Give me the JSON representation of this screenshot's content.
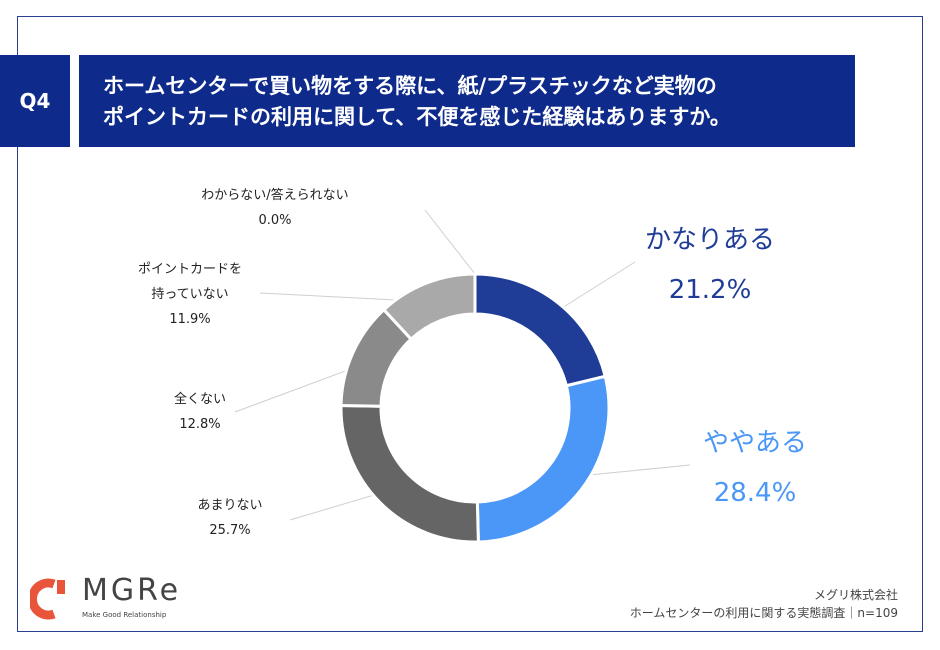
{
  "header": {
    "q_number": "Q4",
    "title_line1": "ホームセンターで買い物をする際に、紙/プラスチックなど実物の",
    "title_line2": "ポイントカードの利用に関して、不便を感じた経験はありますか。"
  },
  "chart_data": {
    "type": "pie",
    "donut": true,
    "categories": [
      "かなりある",
      "ややある",
      "あまりない",
      "全くない",
      "ポイントカードを持っていない",
      "わからない/答えられない"
    ],
    "values": [
      21.2,
      28.4,
      25.7,
      12.8,
      11.9,
      0.0
    ],
    "labels": [
      {
        "name": "かなりある",
        "value": "21.2%"
      },
      {
        "name": "ややある",
        "value": "28.4%"
      },
      {
        "name": "あまりない",
        "value": "25.7%"
      },
      {
        "name": "全くない",
        "value": "12.8%"
      },
      {
        "name1": "ポイントカードを",
        "name2": "持っていない",
        "value": "11.9%"
      },
      {
        "name": "わからない/答えられない",
        "value": "0.0%"
      }
    ],
    "colors": [
      "#1f3c96",
      "#4a97f7",
      "#656565",
      "#8a8a8a",
      "#a9a9a9",
      "#cccccc"
    ]
  },
  "footer": {
    "brand": "MGRe",
    "tagline": "Make Good Relationship",
    "company": "メグリ株式会社",
    "survey": "ホームセンターの利用に関する実態調査｜n=109"
  }
}
